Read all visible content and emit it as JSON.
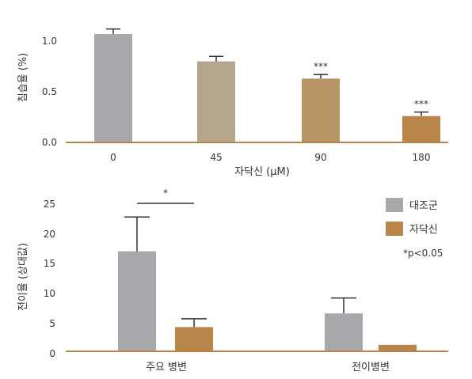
{
  "colors": {
    "axis": "#b8834a",
    "errorbar": "#333333",
    "gray": "#a7a8ab",
    "beige": "#b4a58e",
    "tan": "#b99466",
    "brown": "#b9864a"
  },
  "chart_data": [
    {
      "type": "bar",
      "xlabel": "자닥신 (μM)",
      "ylabel": "침습율 (%)",
      "ylim": [
        0,
        1.25
      ],
      "yticks": [
        "1.0",
        "0.5",
        "0.0"
      ],
      "yticks_values": [
        1.0,
        0.5,
        0.0
      ],
      "categories": [
        "0",
        "45",
        "90",
        "180"
      ],
      "values": [
        1.07,
        0.8,
        0.63,
        0.26
      ],
      "errors": [
        0.05,
        0.05,
        0.04,
        0.04
      ],
      "annotations": [
        "",
        "",
        "***",
        "***"
      ],
      "bar_colors": [
        "#a7a8ab",
        "#b4a58e",
        "#b99466",
        "#b9864a"
      ]
    },
    {
      "type": "bar",
      "xlabel": "",
      "ylabel": "전이율 (상대값)",
      "ylim": [
        0,
        25
      ],
      "yticks": [
        "25",
        "20",
        "15",
        "10",
        "5",
        "0"
      ],
      "yticks_values": [
        25,
        20,
        15,
        10,
        5,
        0
      ],
      "categories": [
        "주요 병변",
        "전이병변"
      ],
      "series": [
        {
          "name": "대조군",
          "values": [
            16.9,
            6.4
          ],
          "errors": [
            5.8,
            2.6
          ],
          "color": "#a7a8ab"
        },
        {
          "name": "자닥신",
          "values": [
            4.1,
            1.1
          ],
          "errors": [
            1.4,
            0
          ],
          "color": "#b9864a"
        }
      ],
      "significance": {
        "label": "*",
        "between": [
          "주요 병변:대조군",
          "주요 병변:자닥신"
        ]
      },
      "legend": {
        "position": "top-right",
        "note": "*p<0.05"
      }
    }
  ]
}
